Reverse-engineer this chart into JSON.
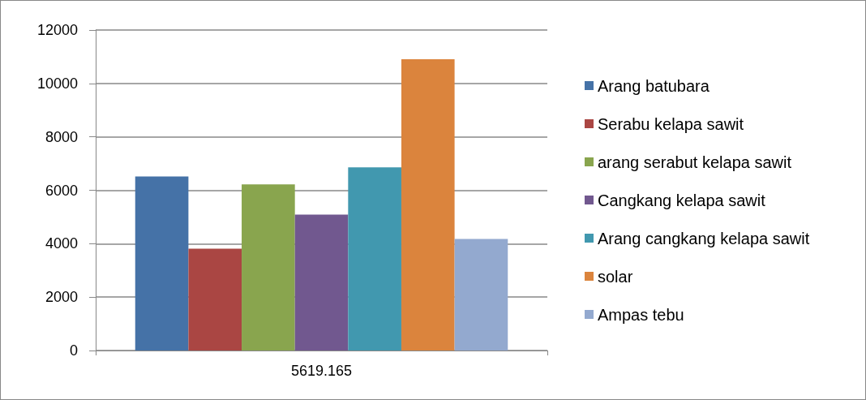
{
  "chart_data": {
    "type": "bar",
    "categories": [
      "5619.165"
    ],
    "series": [
      {
        "name": "Arang batubara",
        "color": "#4572a7",
        "values": [
          6520
        ]
      },
      {
        "name": "Serabu kelapa sawit",
        "color": "#aa4643",
        "values": [
          3810
        ]
      },
      {
        "name": "arang serabut kelapa sawit",
        "color": "#89a54e",
        "values": [
          6220
        ]
      },
      {
        "name": "Cangkang kelapa sawit",
        "color": "#71588f",
        "values": [
          5090
        ]
      },
      {
        "name": "Arang cangkang kelapa sawit",
        "color": "#4198af",
        "values": [
          6860
        ]
      },
      {
        "name": "solar",
        "color": "#db843d",
        "values": [
          10910
        ]
      },
      {
        "name": "Ampas tebu",
        "color": "#93a9cf",
        "values": [
          4180
        ]
      }
    ],
    "ylim": [
      0,
      12000
    ],
    "yticks": [
      0,
      2000,
      4000,
      6000,
      8000,
      10000,
      12000
    ],
    "grid": "y",
    "legend": "right"
  }
}
